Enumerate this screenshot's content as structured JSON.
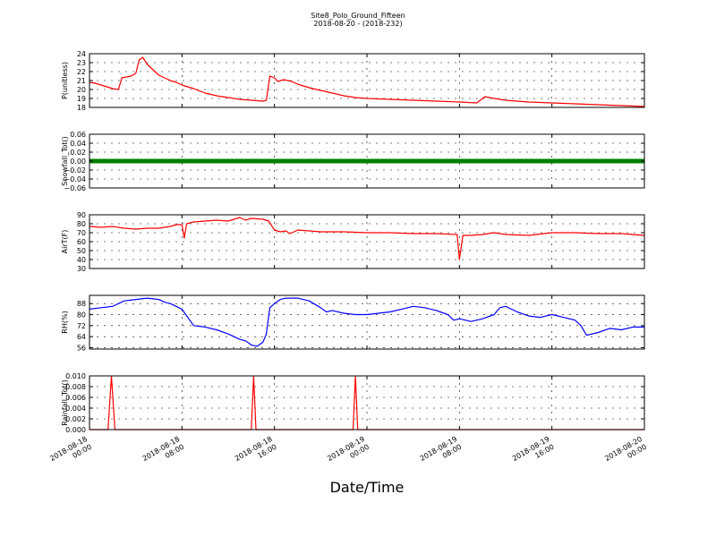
{
  "title": "Site8_Polo_Ground_Fifteen",
  "subtitle": "2018-08-20 - (2018-232)",
  "xlabel": "Date/Time",
  "x_ticks": [
    {
      "line1": "2018-08-18",
      "line2": "00:00"
    },
    {
      "line1": "2018-08-18",
      "line2": "08:00"
    },
    {
      "line1": "2018-08-18",
      "line2": "16:00"
    },
    {
      "line1": "2018-08-19",
      "line2": "00:00"
    },
    {
      "line1": "2018-08-19",
      "line2": "08:00"
    },
    {
      "line1": "2018-08-19",
      "line2": "16:00"
    },
    {
      "line1": "2018-08-20",
      "line2": "00:00"
    }
  ],
  "colors": {
    "red": "#ff0000",
    "green": "#007f00",
    "blue": "#0000ff"
  },
  "chart_data": [
    {
      "type": "line",
      "ylabel": "P(unitless)",
      "ylim": [
        18,
        24
      ],
      "yticks": [
        "18",
        "19",
        "20",
        "21",
        "22",
        "23",
        "24"
      ],
      "grid": true,
      "color": "#ff0000",
      "x_unit": "hours since 2018-08-18 00:00",
      "xlim": [
        0,
        48
      ],
      "points": [
        [
          0,
          20.8
        ],
        [
          0.5,
          20.7
        ],
        [
          1,
          20.5
        ],
        [
          1.5,
          20.3
        ],
        [
          2,
          20.1
        ],
        [
          2.5,
          20.0
        ],
        [
          2.8,
          21.3
        ],
        [
          3.2,
          21.4
        ],
        [
          3.6,
          21.5
        ],
        [
          4,
          21.8
        ],
        [
          4.3,
          23.3
        ],
        [
          4.6,
          23.6
        ],
        [
          5,
          22.8
        ],
        [
          5.5,
          22.2
        ],
        [
          6,
          21.6
        ],
        [
          6.5,
          21.3
        ],
        [
          7,
          21.0
        ],
        [
          7.5,
          20.8
        ],
        [
          8,
          20.5
        ],
        [
          9,
          20.1
        ],
        [
          10,
          19.6
        ],
        [
          11,
          19.3
        ],
        [
          12,
          19.1
        ],
        [
          13,
          18.9
        ],
        [
          14,
          18.8
        ],
        [
          15,
          18.7
        ],
        [
          15.3,
          18.8
        ],
        [
          15.6,
          21.5
        ],
        [
          16,
          21.3
        ],
        [
          16.3,
          20.9
        ],
        [
          16.8,
          21.1
        ],
        [
          17.5,
          20.9
        ],
        [
          18,
          20.6
        ],
        [
          19,
          20.2
        ],
        [
          20,
          19.9
        ],
        [
          21,
          19.6
        ],
        [
          22,
          19.3
        ],
        [
          23,
          19.1
        ],
        [
          24,
          19.0
        ],
        [
          26,
          18.9
        ],
        [
          28,
          18.8
        ],
        [
          30,
          18.7
        ],
        [
          32,
          18.6
        ],
        [
          33.5,
          18.5
        ],
        [
          34.2,
          19.2
        ],
        [
          35,
          19.0
        ],
        [
          36,
          18.8
        ],
        [
          38,
          18.6
        ],
        [
          40,
          18.5
        ],
        [
          42,
          18.4
        ],
        [
          44,
          18.3
        ],
        [
          46,
          18.2
        ],
        [
          48,
          18.1
        ]
      ]
    },
    {
      "type": "scatter",
      "ylabel": "Snowfall_Tot()",
      "ylim": [
        -0.06,
        0.06
      ],
      "yticks": [
        "−0.06",
        "−0.04",
        "−0.02",
        "0.00",
        "0.02",
        "0.04",
        "0.06"
      ],
      "grid": true,
      "color": "#007f00",
      "x_unit": "hours since 2018-08-18 00:00",
      "xlim": [
        0,
        48
      ],
      "points": [
        [
          0,
          0
        ],
        [
          48,
          0
        ]
      ]
    },
    {
      "type": "line",
      "ylabel": "AirT(F)",
      "ylim": [
        30,
        90
      ],
      "yticks": [
        "30",
        "40",
        "50",
        "60",
        "70",
        "80",
        "90"
      ],
      "grid": true,
      "color": "#ff0000",
      "x_unit": "hours since 2018-08-18 00:00",
      "xlim": [
        0,
        48
      ],
      "points": [
        [
          0,
          77
        ],
        [
          1,
          76
        ],
        [
          2,
          77
        ],
        [
          3,
          75
        ],
        [
          4,
          74
        ],
        [
          5,
          75
        ],
        [
          6,
          75
        ],
        [
          7,
          77
        ],
        [
          7.5,
          79
        ],
        [
          8,
          79
        ],
        [
          8.2,
          64
        ],
        [
          8.4,
          80
        ],
        [
          9,
          82
        ],
        [
          10,
          83
        ],
        [
          11,
          84
        ],
        [
          12,
          83
        ],
        [
          12.5,
          85
        ],
        [
          13,
          87
        ],
        [
          13.5,
          84
        ],
        [
          14,
          86
        ],
        [
          15,
          85
        ],
        [
          15.5,
          83
        ],
        [
          16,
          73
        ],
        [
          16.5,
          71
        ],
        [
          17,
          72
        ],
        [
          17.3,
          69
        ],
        [
          17.7,
          71
        ],
        [
          18,
          73
        ],
        [
          19,
          72
        ],
        [
          20,
          71
        ],
        [
          22,
          71
        ],
        [
          24,
          70
        ],
        [
          26,
          70
        ],
        [
          28,
          69
        ],
        [
          30,
          69
        ],
        [
          31.8,
          68
        ],
        [
          32,
          40
        ],
        [
          32.3,
          67
        ],
        [
          33,
          67
        ],
        [
          34,
          68
        ],
        [
          35,
          70
        ],
        [
          36,
          68
        ],
        [
          38,
          67
        ],
        [
          40,
          70
        ],
        [
          42,
          70
        ],
        [
          44,
          69
        ],
        [
          46,
          69
        ],
        [
          48,
          67
        ]
      ]
    },
    {
      "type": "line",
      "ylabel": "RH(%)",
      "ylim": [
        55,
        94
      ],
      "yticks": [
        "56",
        "64",
        "72",
        "80",
        "88"
      ],
      "grid": true,
      "color": "#0000ff",
      "x_unit": "hours since 2018-08-18 00:00",
      "xlim": [
        0,
        48
      ],
      "points": [
        [
          0,
          84
        ],
        [
          1,
          85
        ],
        [
          2,
          86
        ],
        [
          3,
          90
        ],
        [
          4,
          91
        ],
        [
          5,
          92
        ],
        [
          6,
          91
        ],
        [
          6.5,
          89
        ],
        [
          7,
          88
        ],
        [
          8,
          84
        ],
        [
          8.5,
          78
        ],
        [
          9,
          72
        ],
        [
          10,
          71
        ],
        [
          11,
          69
        ],
        [
          12,
          66
        ],
        [
          13,
          62
        ],
        [
          13.5,
          61
        ],
        [
          14,
          58
        ],
        [
          14.5,
          57
        ],
        [
          15,
          60
        ],
        [
          15.3,
          66
        ],
        [
          15.6,
          85
        ],
        [
          16,
          88
        ],
        [
          16.5,
          91
        ],
        [
          17,
          92
        ],
        [
          18,
          92
        ],
        [
          19,
          90
        ],
        [
          20,
          85
        ],
        [
          20.5,
          82
        ],
        [
          21,
          83
        ],
        [
          22,
          81
        ],
        [
          23,
          80
        ],
        [
          24,
          80
        ],
        [
          25,
          81
        ],
        [
          26,
          82
        ],
        [
          27,
          84
        ],
        [
          28,
          86
        ],
        [
          29,
          85
        ],
        [
          30,
          83
        ],
        [
          31,
          80
        ],
        [
          31.5,
          76
        ],
        [
          32,
          77
        ],
        [
          33,
          75
        ],
        [
          34,
          77
        ],
        [
          35,
          80
        ],
        [
          35.5,
          85
        ],
        [
          36,
          86
        ],
        [
          37,
          82
        ],
        [
          38,
          79
        ],
        [
          39,
          78
        ],
        [
          40,
          80
        ],
        [
          41,
          78
        ],
        [
          42,
          76
        ],
        [
          42.5,
          72
        ],
        [
          43,
          65
        ],
        [
          44,
          67
        ],
        [
          45,
          70
        ],
        [
          46,
          69
        ],
        [
          47,
          71
        ],
        [
          48,
          71
        ]
      ]
    },
    {
      "type": "line",
      "ylabel": "Rainfall_Tot()",
      "ylim": [
        0,
        0.01
      ],
      "yticks": [
        "0.000",
        "0.002",
        "0.004",
        "0.006",
        "0.008",
        "0.010"
      ],
      "grid": true,
      "color": "#ff0000",
      "x_unit": "hours since 2018-08-18 00:00",
      "xlim": [
        0,
        48
      ],
      "points": [
        [
          0,
          0
        ],
        [
          1.6,
          0
        ],
        [
          1.9,
          0.01
        ],
        [
          2.2,
          0
        ],
        [
          14,
          0
        ],
        [
          14.2,
          0.01
        ],
        [
          14.4,
          0
        ],
        [
          22.8,
          0
        ],
        [
          23,
          0.01
        ],
        [
          23.2,
          0
        ],
        [
          48,
          0
        ]
      ]
    }
  ]
}
